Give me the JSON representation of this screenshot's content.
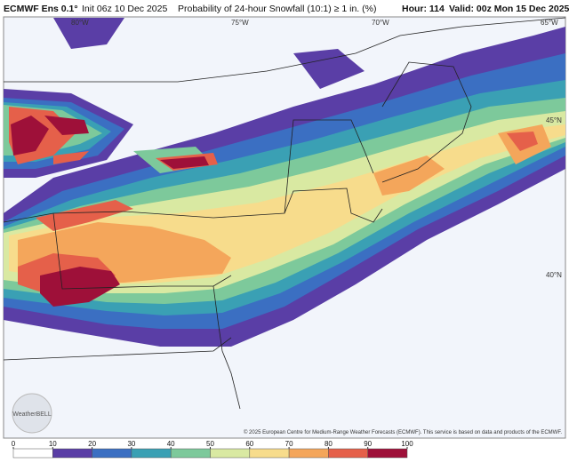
{
  "header": {
    "model": "ECMWF Ens 0.1°",
    "init": "Init 06z 10 Dec 2025",
    "product": "Probability of 24-hour Snowfall (10:1) ≥ 1 in. (%)",
    "hour": "Hour: 114",
    "valid": "Valid: 00z Mon 15 Dec 2025"
  },
  "map": {
    "lon_labels": [
      "80°W",
      "75°W",
      "70°W",
      "65°W"
    ],
    "lat_labels": [
      "45°N",
      "40°N"
    ],
    "watermark": "WeatherBELL",
    "credit": "© 2025 European Centre for Medium-Range Weather Forecasts (ECMWF). This service is based on data and products of the ECMWF."
  },
  "colorbar": {
    "ticks": [
      0,
      10,
      20,
      30,
      40,
      50,
      60,
      70,
      80,
      90,
      100
    ],
    "colors": [
      "#ffffff",
      "#5a3ea6",
      "#3b6fc2",
      "#3aa0b4",
      "#7dc99b",
      "#d9e9a2",
      "#f7dc8c",
      "#f4a65b",
      "#e5604a",
      "#9e1039"
    ]
  }
}
